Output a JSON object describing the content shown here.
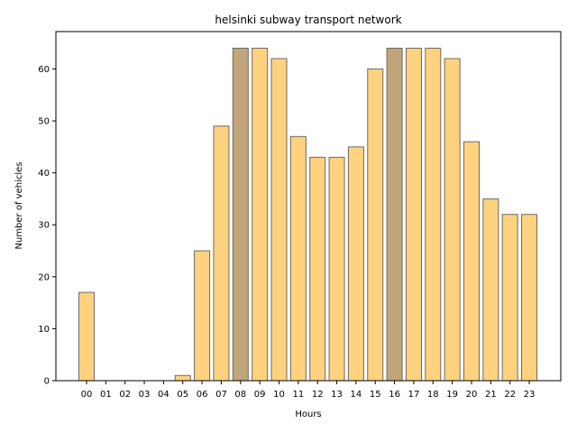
{
  "chart_data": {
    "type": "bar",
    "title": "helsinki subway transport network",
    "xlabel": "Hours",
    "ylabel": "Number of vehicles",
    "categories": [
      "00",
      "01",
      "02",
      "03",
      "04",
      "05",
      "06",
      "07",
      "08",
      "09",
      "10",
      "11",
      "12",
      "13",
      "14",
      "15",
      "16",
      "17",
      "18",
      "19",
      "20",
      "21",
      "22",
      "23"
    ],
    "values": [
      17,
      0,
      0,
      0,
      0,
      1,
      25,
      49,
      64,
      64,
      62,
      47,
      43,
      43,
      45,
      60,
      64,
      64,
      64,
      62,
      46,
      35,
      32,
      32
    ],
    "highlighted_categories": [
      "08",
      "16"
    ],
    "ylim": [
      0,
      67.2
    ],
    "yticks": [
      0,
      10,
      20,
      30,
      40,
      50,
      60
    ],
    "grid": false,
    "legend": "none",
    "colors": {
      "bar": "#ffd280",
      "bar_highlight": "#c2a57a",
      "bar_edge": "#6e6a62"
    }
  }
}
